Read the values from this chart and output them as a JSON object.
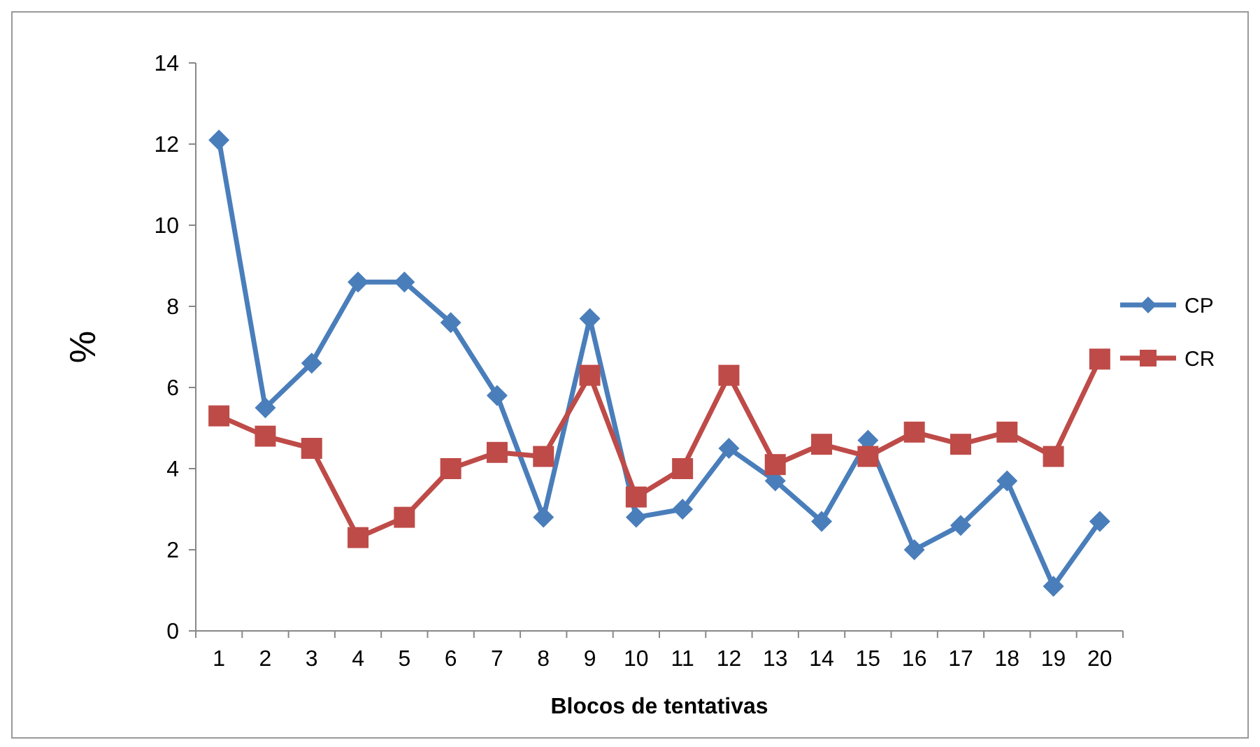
{
  "chart_data": {
    "type": "line",
    "xlabel": "Blocos de tentativas",
    "ylabel": "%",
    "categories": [
      "1",
      "2",
      "3",
      "4",
      "5",
      "6",
      "7",
      "8",
      "9",
      "10",
      "11",
      "12",
      "13",
      "14",
      "15",
      "16",
      "17",
      "18",
      "19",
      "20"
    ],
    "series": [
      {
        "name": "CP",
        "color": "#4a7ebb",
        "marker": "diamond",
        "values": [
          12.1,
          5.5,
          6.6,
          8.6,
          8.6,
          7.6,
          5.8,
          2.8,
          7.7,
          2.8,
          3.0,
          4.5,
          3.7,
          2.7,
          4.7,
          2.0,
          2.6,
          3.7,
          1.1,
          2.7
        ]
      },
      {
        "name": "CR",
        "color": "#be4b48",
        "marker": "square",
        "values": [
          5.3,
          4.8,
          4.5,
          2.3,
          2.8,
          4.0,
          4.4,
          4.3,
          6.3,
          3.3,
          4.0,
          6.3,
          4.1,
          4.6,
          4.3,
          4.9,
          4.6,
          4.9,
          4.3,
          6.7
        ]
      }
    ],
    "ylim": [
      0,
      14
    ],
    "yticks": [
      0,
      2,
      4,
      6,
      8,
      10,
      12,
      14
    ],
    "grid": false,
    "legend": "right",
    "line_style": "solid"
  }
}
